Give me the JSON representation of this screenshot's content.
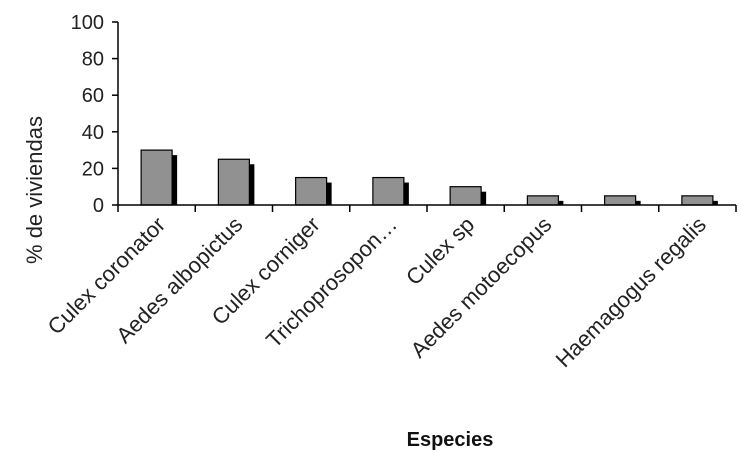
{
  "chart_data": {
    "type": "bar",
    "title": "",
    "xlabel": "Especies",
    "ylabel": "% de viviendas",
    "ylim": [
      0,
      100
    ],
    "yticks": [
      0,
      20,
      40,
      60,
      80,
      100
    ],
    "categories": [
      "Culex coronator",
      "Aedes albopictus",
      "Culex corniger",
      "Trichoprosopon…",
      "Culex sp",
      "Aedes motoecopus",
      "",
      "Haemagogus regalis"
    ],
    "values": [
      30,
      25,
      15,
      15,
      10,
      5,
      5,
      5
    ],
    "bar_color": "#919191",
    "shadow_color": "#000000",
    "grid": false,
    "legend": "none"
  }
}
